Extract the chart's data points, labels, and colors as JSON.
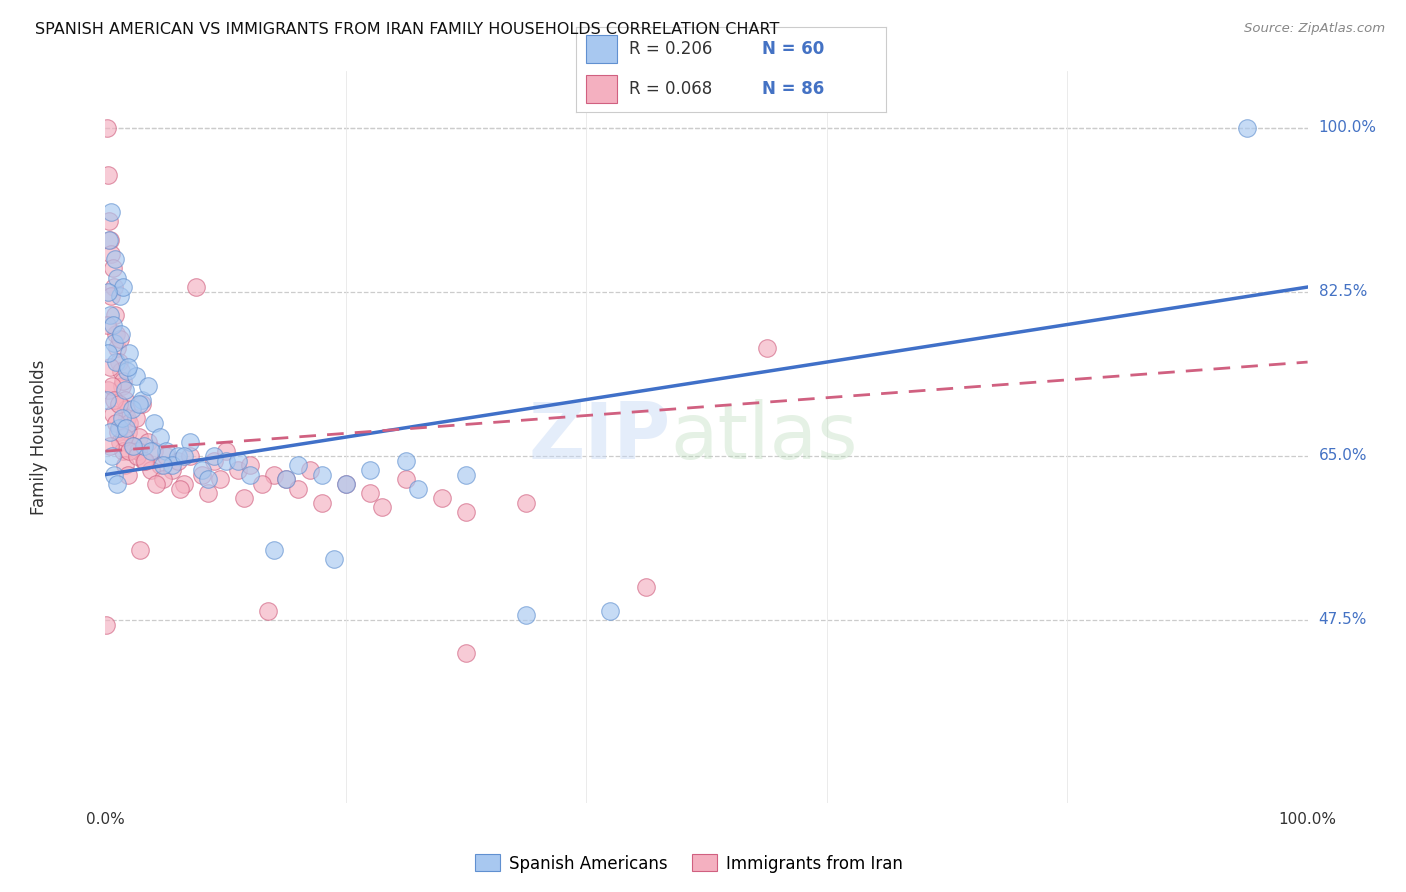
{
  "title": "SPANISH AMERICAN VS IMMIGRANTS FROM IRAN FAMILY HOUSEHOLDS CORRELATION CHART",
  "source": "Source: ZipAtlas.com",
  "ylabel": "Family Households",
  "yticks": [
    47.5,
    65.0,
    82.5,
    100.0
  ],
  "ytick_labels": [
    "47.5%",
    "65.0%",
    "82.5%",
    "100.0%"
  ],
  "xlim": [
    0,
    100
  ],
  "ylim": [
    28,
    106
  ],
  "blue_R": 0.206,
  "blue_N": 60,
  "pink_R": 0.068,
  "pink_N": 86,
  "blue_color": "#A8C8F0",
  "pink_color": "#F4B0C0",
  "blue_edge_color": "#6090D0",
  "pink_edge_color": "#D06080",
  "blue_line_color": "#4070C8",
  "pink_line_color": "#D06080",
  "legend_text_color": "#4472C4",
  "background_color": "#FFFFFF",
  "watermark_zip_color": "#C8D8F0",
  "watermark_atlas_color": "#B8D8C0",
  "blue_scatter_x": [
    0.3,
    0.5,
    0.8,
    1.0,
    0.4,
    0.6,
    1.2,
    1.5,
    0.7,
    0.9,
    1.3,
    1.8,
    2.0,
    2.5,
    1.6,
    3.0,
    2.2,
    1.1,
    0.2,
    1.4,
    2.8,
    3.5,
    4.0,
    3.2,
    4.5,
    5.0,
    6.0,
    7.0,
    8.0,
    5.5,
    9.0,
    10.0,
    12.0,
    15.0,
    16.0,
    18.0,
    20.0,
    22.0,
    25.0,
    30.0,
    0.15,
    0.35,
    0.55,
    0.75,
    0.95,
    1.7,
    2.3,
    3.8,
    6.5,
    11.0,
    14.0,
    19.0,
    35.0,
    42.0,
    95.0,
    0.25,
    1.9,
    4.8,
    8.5,
    26.0
  ],
  "blue_scatter_y": [
    88.0,
    91.0,
    86.0,
    84.0,
    80.0,
    79.0,
    82.0,
    83.0,
    77.0,
    75.0,
    78.0,
    74.0,
    76.0,
    73.5,
    72.0,
    71.0,
    70.0,
    68.0,
    82.5,
    69.0,
    70.5,
    72.5,
    68.5,
    66.0,
    67.0,
    65.5,
    65.0,
    66.5,
    63.5,
    64.0,
    65.0,
    64.5,
    63.0,
    62.5,
    64.0,
    63.0,
    62.0,
    63.5,
    64.5,
    63.0,
    71.0,
    67.5,
    65.0,
    63.0,
    62.0,
    68.0,
    66.0,
    65.5,
    65.0,
    64.5,
    55.0,
    54.0,
    48.0,
    48.5,
    100.0,
    76.0,
    74.5,
    64.0,
    62.5,
    61.5
  ],
  "pink_scatter_x": [
    0.1,
    0.2,
    0.3,
    0.4,
    0.5,
    0.6,
    0.7,
    0.8,
    0.9,
    1.0,
    1.1,
    1.2,
    1.3,
    1.4,
    1.5,
    1.6,
    1.7,
    1.8,
    1.9,
    2.0,
    2.2,
    2.5,
    2.8,
    3.0,
    3.5,
    4.0,
    4.5,
    5.0,
    5.5,
    6.0,
    7.0,
    8.0,
    9.0,
    10.0,
    11.0,
    12.0,
    14.0,
    15.0,
    17.0,
    20.0,
    25.0,
    0.15,
    0.25,
    0.35,
    0.55,
    0.65,
    0.85,
    1.05,
    1.25,
    1.45,
    1.65,
    1.85,
    2.3,
    2.7,
    3.2,
    3.8,
    4.8,
    6.5,
    7.5,
    9.5,
    13.0,
    16.0,
    22.0,
    28.0,
    35.0,
    0.45,
    0.75,
    1.15,
    1.55,
    1.95,
    2.6,
    3.3,
    4.2,
    6.2,
    8.5,
    11.5,
    18.0,
    23.0,
    30.0,
    0.05,
    55.0,
    0.38,
    2.9,
    13.5,
    30.0,
    45.0
  ],
  "pink_scatter_y": [
    100.0,
    95.0,
    90.0,
    88.0,
    86.5,
    85.0,
    83.0,
    80.0,
    78.0,
    76.5,
    75.0,
    77.5,
    74.0,
    72.5,
    73.0,
    71.0,
    70.0,
    69.0,
    67.5,
    68.5,
    66.0,
    69.0,
    67.0,
    70.5,
    66.5,
    65.5,
    64.0,
    65.0,
    63.5,
    64.5,
    65.0,
    63.0,
    64.5,
    65.5,
    63.5,
    64.0,
    63.0,
    62.5,
    63.5,
    62.0,
    62.5,
    79.0,
    72.0,
    74.5,
    72.5,
    69.5,
    68.5,
    67.5,
    66.5,
    65.5,
    64.0,
    63.0,
    66.0,
    65.5,
    64.5,
    63.5,
    62.5,
    62.0,
    83.0,
    62.5,
    62.0,
    61.5,
    61.0,
    60.5,
    60.0,
    82.0,
    71.0,
    70.5,
    67.0,
    65.5,
    65.0,
    64.5,
    62.0,
    61.5,
    61.0,
    60.5,
    60.0,
    59.5,
    59.0,
    47.0,
    76.5,
    66.0,
    55.0,
    48.5,
    44.0,
    51.0
  ]
}
